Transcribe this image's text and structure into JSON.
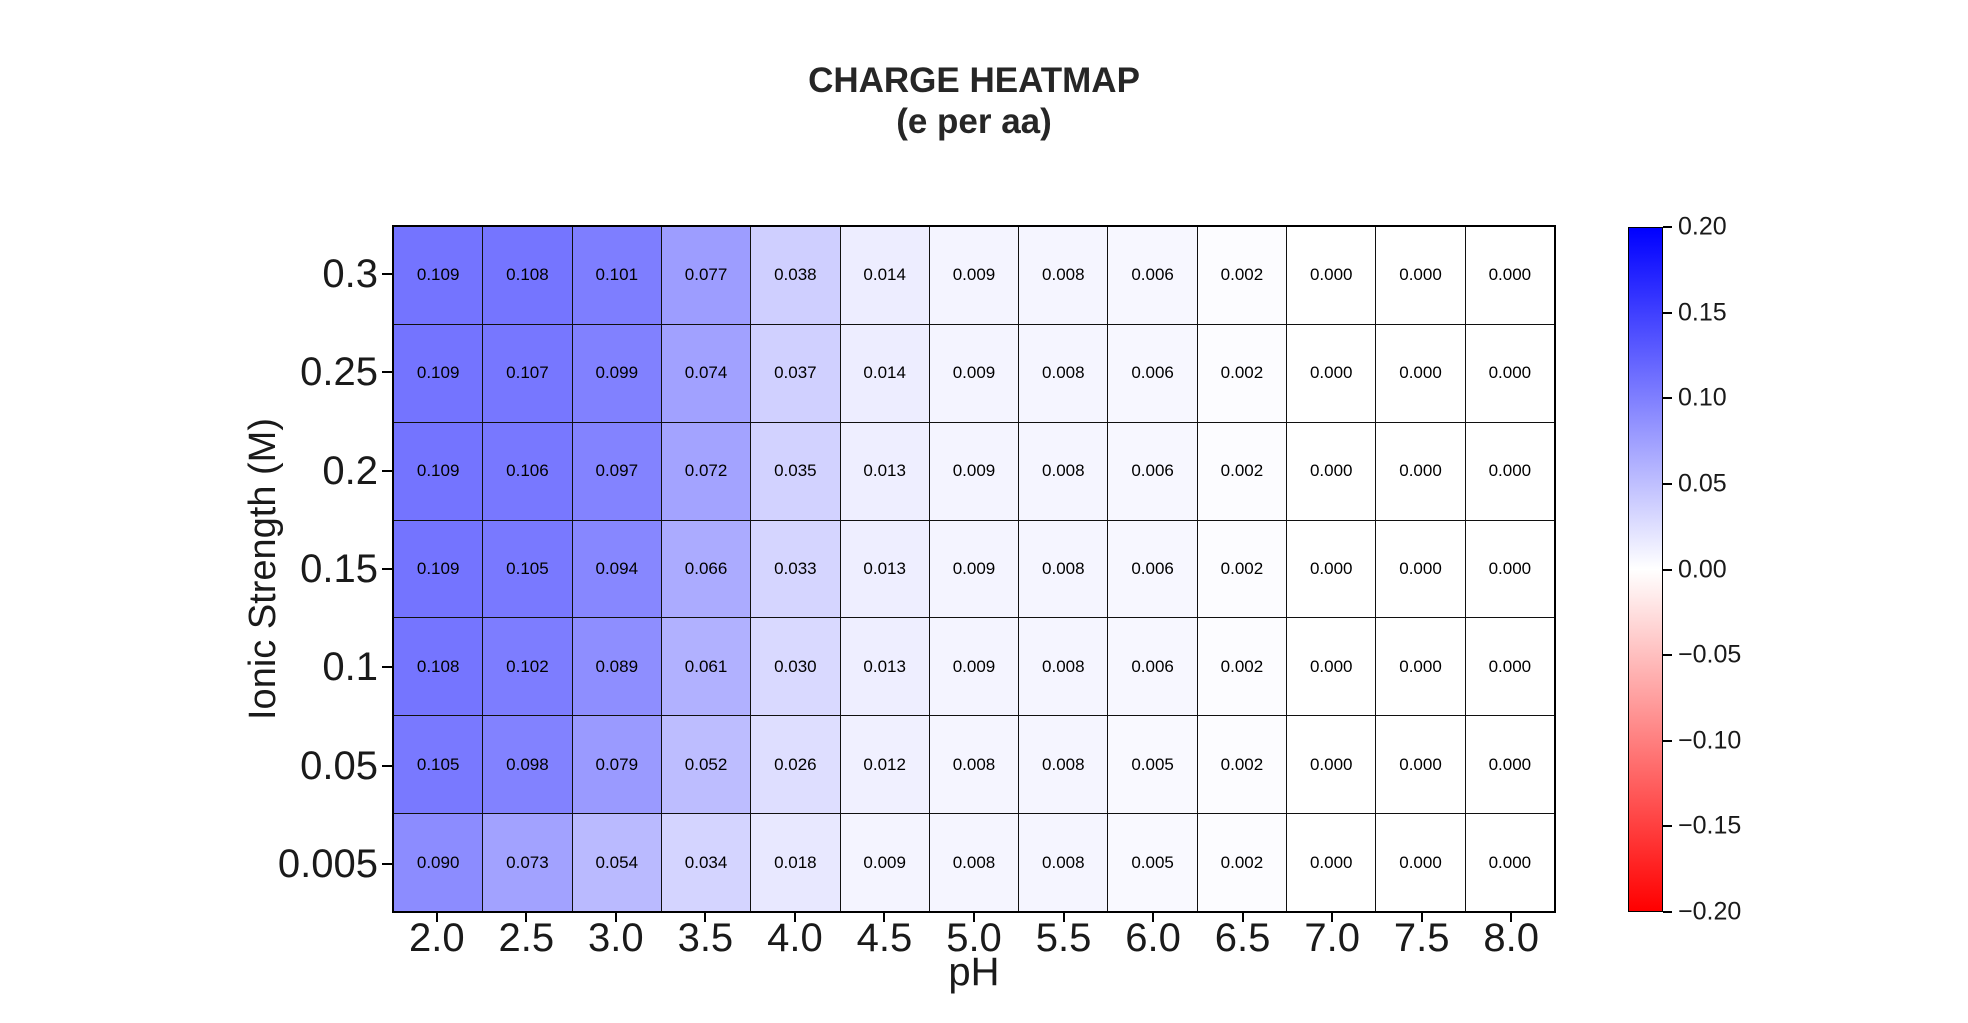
{
  "title": {
    "line1": "CHARGE HEATMAP",
    "line2": "(e per aa)"
  },
  "chart_data": {
    "type": "heatmap",
    "title": "CHARGE HEATMAP (e per aa)",
    "xlabel": "pH",
    "ylabel": "Ionic Strength (M)",
    "x_ticks": [
      "2.0",
      "2.5",
      "3.0",
      "3.5",
      "4.0",
      "4.5",
      "5.0",
      "5.5",
      "6.0",
      "6.5",
      "7.0",
      "7.5",
      "8.0"
    ],
    "y_ticks": [
      "0.3",
      "0.25",
      "0.2",
      "0.15",
      "0.1",
      "0.05",
      "0.005"
    ],
    "values": [
      [
        0.109,
        0.108,
        0.101,
        0.077,
        0.038,
        0.014,
        0.009,
        0.008,
        0.006,
        0.002,
        0.0,
        0.0,
        0.0
      ],
      [
        0.109,
        0.107,
        0.099,
        0.074,
        0.037,
        0.014,
        0.009,
        0.008,
        0.006,
        0.002,
        0.0,
        0.0,
        0.0
      ],
      [
        0.109,
        0.106,
        0.097,
        0.072,
        0.035,
        0.013,
        0.009,
        0.008,
        0.006,
        0.002,
        0.0,
        0.0,
        0.0
      ],
      [
        0.109,
        0.105,
        0.094,
        0.066,
        0.033,
        0.013,
        0.009,
        0.008,
        0.006,
        0.002,
        0.0,
        0.0,
        0.0
      ],
      [
        0.108,
        0.102,
        0.089,
        0.061,
        0.03,
        0.013,
        0.009,
        0.008,
        0.006,
        0.002,
        0.0,
        0.0,
        0.0
      ],
      [
        0.105,
        0.098,
        0.079,
        0.052,
        0.026,
        0.012,
        0.008,
        0.008,
        0.005,
        0.002,
        0.0,
        0.0,
        0.0
      ],
      [
        0.09,
        0.073,
        0.054,
        0.034,
        0.018,
        0.009,
        0.008,
        0.008,
        0.005,
        0.002,
        0.0,
        0.0,
        0.0
      ]
    ],
    "value_decimals": 3,
    "grid": true,
    "colormap": {
      "name": "bwr",
      "vmin": -0.2,
      "vmax": 0.2,
      "min_color": "#ff0000",
      "mid_color": "#ffffff",
      "max_color": "#0000ff"
    },
    "colorbar": {
      "position": "right",
      "tick_labels": [
        "0.20",
        "0.15",
        "0.10",
        "0.05",
        "0.00",
        "−0.05",
        "−0.10",
        "−0.15",
        "−0.20"
      ]
    }
  }
}
